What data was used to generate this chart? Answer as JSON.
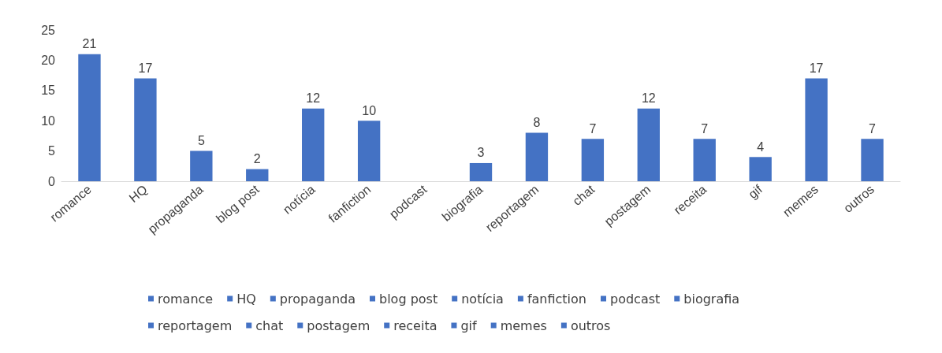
{
  "chart_data": {
    "type": "bar",
    "stacked": true,
    "categories": [
      "romance",
      "HQ",
      "propaganda",
      "blog post",
      "notícia",
      "fanfiction",
      "podcast",
      "biografia",
      "reportagem",
      "chat",
      "postagem",
      "receita",
      "gif",
      "memes",
      "outros"
    ],
    "series": [
      {
        "name": "romance",
        "color": "#4472c4",
        "values": [
          21,
          null,
          null,
          null,
          null,
          null,
          null,
          null,
          null,
          null,
          null,
          null,
          null,
          null,
          null
        ]
      },
      {
        "name": "HQ",
        "color": "#4472c4",
        "values": [
          null,
          17,
          null,
          null,
          null,
          null,
          null,
          null,
          null,
          null,
          null,
          null,
          null,
          null,
          null
        ]
      },
      {
        "name": "propaganda",
        "color": "#4472c4",
        "values": [
          null,
          null,
          5,
          null,
          null,
          null,
          null,
          null,
          null,
          null,
          null,
          null,
          null,
          null,
          null
        ]
      },
      {
        "name": "blog post",
        "color": "#4472c4",
        "values": [
          null,
          null,
          null,
          2,
          null,
          null,
          null,
          null,
          null,
          null,
          null,
          null,
          null,
          null,
          null
        ]
      },
      {
        "name": "notícia",
        "color": "#4472c4",
        "values": [
          null,
          null,
          null,
          null,
          12,
          null,
          null,
          null,
          null,
          null,
          null,
          null,
          null,
          null,
          null
        ]
      },
      {
        "name": "fanfiction",
        "color": "#4472c4",
        "values": [
          null,
          null,
          null,
          null,
          null,
          10,
          null,
          null,
          null,
          null,
          null,
          null,
          null,
          null,
          null
        ]
      },
      {
        "name": "podcast",
        "color": "#4472c4",
        "values": [
          null,
          null,
          null,
          null,
          null,
          null,
          null,
          null,
          null,
          null,
          null,
          null,
          null,
          null,
          null
        ]
      },
      {
        "name": "biografia",
        "color": "#4472c4",
        "values": [
          null,
          null,
          null,
          null,
          null,
          null,
          null,
          3,
          null,
          null,
          null,
          null,
          null,
          null,
          null
        ]
      },
      {
        "name": "reportagem",
        "color": "#4472c4",
        "values": [
          null,
          null,
          null,
          null,
          null,
          null,
          null,
          null,
          8,
          null,
          null,
          null,
          null,
          null,
          null
        ]
      },
      {
        "name": "chat",
        "color": "#4472c4",
        "values": [
          null,
          null,
          null,
          null,
          null,
          null,
          null,
          null,
          null,
          7,
          null,
          null,
          null,
          null,
          null
        ]
      },
      {
        "name": "postagem",
        "color": "#4472c4",
        "values": [
          null,
          null,
          null,
          null,
          null,
          null,
          null,
          null,
          null,
          null,
          12,
          null,
          null,
          null,
          null
        ]
      },
      {
        "name": "receita",
        "color": "#4472c4",
        "values": [
          null,
          null,
          null,
          null,
          null,
          null,
          null,
          null,
          null,
          null,
          null,
          7,
          null,
          null,
          null
        ]
      },
      {
        "name": "gif",
        "color": "#4472c4",
        "values": [
          null,
          null,
          null,
          null,
          null,
          null,
          null,
          null,
          null,
          null,
          null,
          null,
          4,
          null,
          null
        ]
      },
      {
        "name": "memes",
        "color": "#4472c4",
        "values": [
          null,
          null,
          null,
          null,
          null,
          null,
          null,
          null,
          null,
          null,
          null,
          null,
          null,
          17,
          null
        ]
      },
      {
        "name": "outros",
        "color": "#4472c4",
        "values": [
          null,
          null,
          null,
          null,
          null,
          null,
          null,
          null,
          null,
          null,
          null,
          null,
          null,
          null,
          7
        ]
      }
    ],
    "ylim": [
      0,
      25
    ],
    "yticks": [
      0,
      5,
      10,
      15,
      20,
      25
    ],
    "grid": false,
    "data_labels": true,
    "legend": "bottom"
  }
}
